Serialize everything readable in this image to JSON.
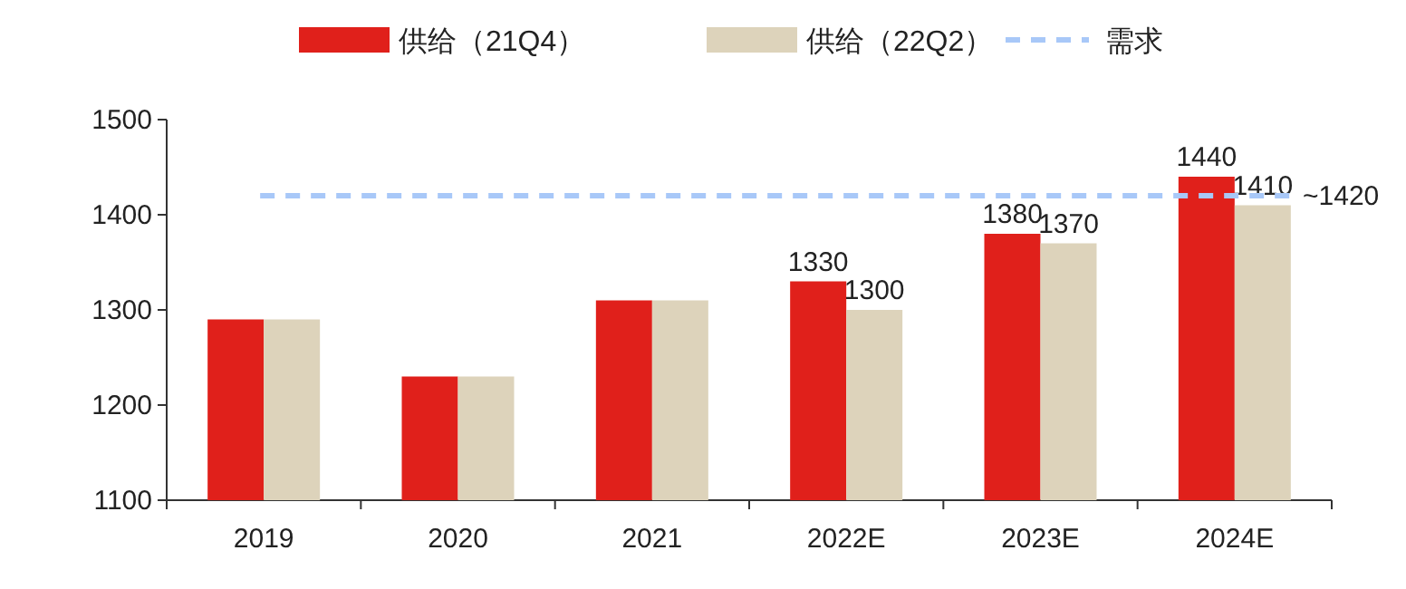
{
  "chart_data": {
    "type": "bar",
    "categories": [
      "2019",
      "2020",
      "2021",
      "2022E",
      "2023E",
      "2024E"
    ],
    "series": [
      {
        "name": "供给（21Q4）",
        "color": "#e0201b",
        "values": [
          1290,
          1230,
          1310,
          1330,
          1380,
          1440
        ],
        "value_labels": [
          null,
          null,
          null,
          "1330",
          "1380",
          "1440"
        ]
      },
      {
        "name": "供给（22Q2）",
        "color": "#ddd3bb",
        "values": [
          1290,
          1230,
          1310,
          1300,
          1370,
          1410
        ],
        "value_labels": [
          null,
          null,
          null,
          "1300",
          "1370",
          "1410"
        ]
      }
    ],
    "ylim": [
      1100,
      1500
    ],
    "yticks": [
      1100,
      1200,
      1300,
      1400,
      1500
    ],
    "ref_lines": [
      {
        "axis": "y",
        "value": 1420,
        "label": "需求",
        "color": "#a8c8f8",
        "line_style": "dashed"
      }
    ],
    "annotations": [
      "~1420"
    ],
    "legend": "top",
    "grid": false
  }
}
